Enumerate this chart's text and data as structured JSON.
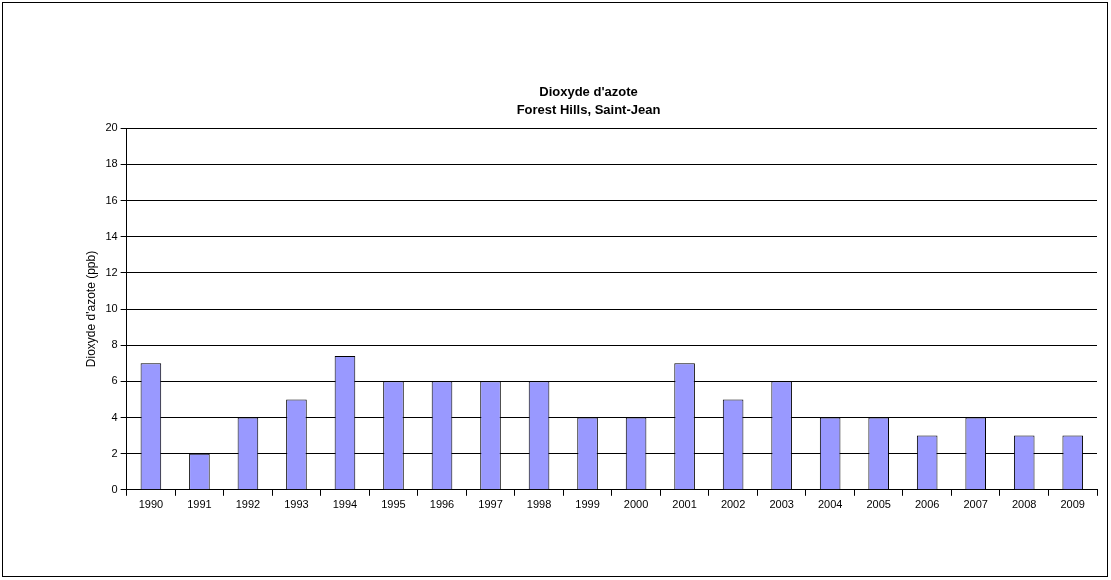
{
  "chart_data": {
    "type": "bar",
    "title": "Dioxyde d'azote",
    "subtitle": "Forest Hills, Saint-Jean",
    "ylabel": "Dioxyde d'azote (ppb)",
    "categories": [
      "1990",
      "1991",
      "1992",
      "1993",
      "1994",
      "1995",
      "1996",
      "1997",
      "1998",
      "1999",
      "2000",
      "2001",
      "2002",
      "2003",
      "2004",
      "2005",
      "2006",
      "2007",
      "2008",
      "2009"
    ],
    "values": [
      7,
      2,
      4,
      5,
      7.4,
      6,
      6,
      6,
      6,
      4,
      4,
      7,
      5,
      6,
      4,
      4,
      3,
      4,
      3,
      3
    ],
    "color": "#9999ff",
    "ylim": [
      0,
      20
    ],
    "yticks": [
      0,
      2,
      4,
      6,
      8,
      10,
      12,
      14,
      16,
      18,
      20
    ],
    "grid": "y",
    "legend": false
  }
}
